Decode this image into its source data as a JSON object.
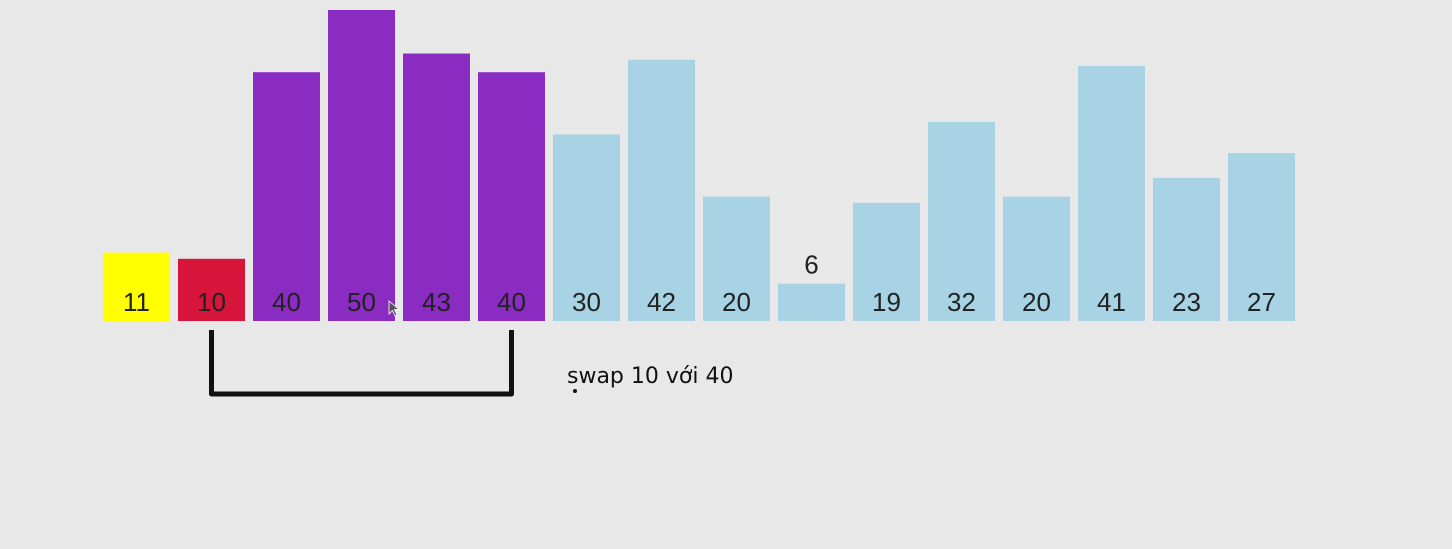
{
  "chart_data": {
    "type": "bar",
    "title": "",
    "xlabel": "",
    "ylabel": "",
    "values": [
      11,
      10,
      40,
      50,
      43,
      40,
      30,
      42,
      20,
      6,
      19,
      32,
      20,
      41,
      23,
      27
    ],
    "labels": [
      "11",
      "10",
      "40",
      "50",
      "43",
      "40",
      "30",
      "42",
      "20",
      "6",
      "19",
      "32",
      "20",
      "41",
      "23",
      "27"
    ],
    "highlight": {
      "pivot_index": 0,
      "current_index": 1,
      "group_start": 2,
      "group_end": 5
    },
    "colors": {
      "pivot": "#ffff00",
      "current": "#d7143a",
      "group": "#8a2bc2",
      "default": "#a7d3e4",
      "bracket": "#111111"
    },
    "swap_bracket": {
      "from_index": 1,
      "to_index": 5
    }
  },
  "annotation": {
    "text": "swap 10 với 40"
  }
}
